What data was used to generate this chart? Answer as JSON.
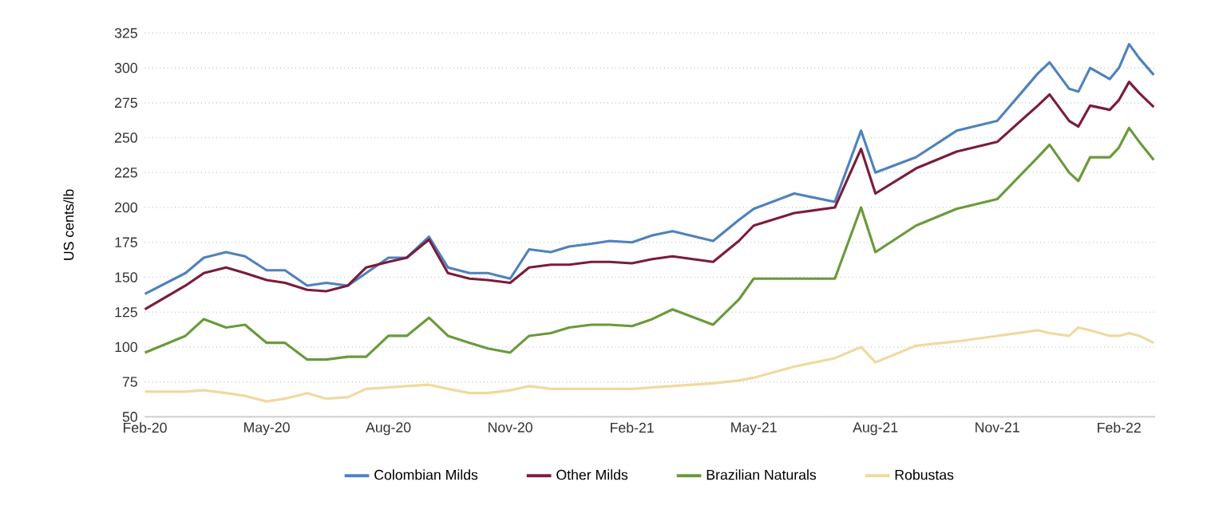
{
  "chart_data": {
    "type": "line",
    "ylabel": "US cents/lb",
    "x": [
      "2020-02-01",
      "2020-03-01",
      "2020-03-15",
      "2020-04-01",
      "2020-04-15",
      "2020-05-01",
      "2020-05-15",
      "2020-06-01",
      "2020-06-15",
      "2020-07-01",
      "2020-07-15",
      "2020-08-01",
      "2020-08-15",
      "2020-09-01",
      "2020-09-15",
      "2020-10-01",
      "2020-10-15",
      "2020-11-01",
      "2020-11-15",
      "2020-12-01",
      "2020-12-15",
      "2021-01-01",
      "2021-01-15",
      "2021-02-01",
      "2021-02-15",
      "2021-03-01",
      "2021-04-01",
      "2021-04-20",
      "2021-05-01",
      "2021-06-01",
      "2021-07-01",
      "2021-07-21",
      "2021-08-01",
      "2021-09-01",
      "2021-10-01",
      "2021-11-01",
      "2021-12-01",
      "2021-12-10",
      "2021-12-25",
      "2022-01-01",
      "2022-01-10",
      "2022-01-25",
      "2022-02-01",
      "2022-02-08",
      "2022-02-15",
      "2022-02-25"
    ],
    "series": [
      {
        "name": "Colombian Milds",
        "color": "#4f81bd",
        "values": [
          138,
          153,
          164,
          168,
          165,
          155,
          155,
          144,
          146,
          144,
          153,
          164,
          164,
          179,
          157,
          153,
          153,
          149,
          170,
          168,
          172,
          174,
          176,
          175,
          180,
          183,
          176,
          191,
          199,
          210,
          204,
          255,
          225,
          236,
          255,
          262,
          296,
          304,
          285,
          283,
          300,
          292,
          300,
          317,
          307,
          295
        ]
      },
      {
        "name": "Other Milds",
        "color": "#7b1c3a",
        "values": [
          127,
          144,
          153,
          157,
          153,
          148,
          146,
          141,
          140,
          144,
          157,
          161,
          164,
          177,
          153,
          149,
          148,
          146,
          157,
          159,
          159,
          161,
          161,
          160,
          163,
          165,
          161,
          176,
          187,
          196,
          200,
          242,
          210,
          228,
          240,
          247,
          273,
          281,
          262,
          258,
          273,
          270,
          277,
          290,
          282,
          272
        ]
      },
      {
        "name": "Brazilian Naturals",
        "color": "#6a9a3a",
        "values": [
          96,
          108,
          120,
          114,
          116,
          103,
          103,
          91,
          91,
          93,
          93,
          108,
          108,
          121,
          108,
          103,
          99,
          96,
          108,
          110,
          114,
          116,
          116,
          115,
          120,
          127,
          116,
          134,
          149,
          149,
          149,
          200,
          168,
          187,
          199,
          206,
          236,
          245,
          225,
          219,
          236,
          236,
          243,
          257,
          247,
          234
        ]
      },
      {
        "name": "Robustas",
        "color": "#f0d9a0",
        "values": [
          68,
          68,
          69,
          67,
          65,
          61,
          63,
          67,
          63,
          64,
          70,
          71,
          72,
          73,
          70,
          67,
          67,
          69,
          72,
          70,
          70,
          70,
          70,
          70,
          71,
          72,
          74,
          76,
          78,
          86,
          92,
          100,
          89,
          101,
          104,
          108,
          112,
          110,
          108,
          114,
          112,
          108,
          108,
          110,
          108,
          103
        ]
      }
    ],
    "xlim": [
      "2020-02-01",
      "2022-02-26"
    ],
    "xticks": [
      {
        "value": "2020-02",
        "label": "Feb-20"
      },
      {
        "value": "2020-05",
        "label": "May-20"
      },
      {
        "value": "2020-08",
        "label": "Aug-20"
      },
      {
        "value": "2020-11",
        "label": "Nov-20"
      },
      {
        "value": "2021-02",
        "label": "Feb-21"
      },
      {
        "value": "2021-05",
        "label": "May-21"
      },
      {
        "value": "2021-08",
        "label": "Aug-21"
      },
      {
        "value": "2021-11",
        "label": "Nov-21"
      },
      {
        "value": "2022-02",
        "label": "Feb-22"
      }
    ],
    "ylim": [
      50,
      325
    ],
    "yticks": [
      50,
      75,
      100,
      125,
      150,
      175,
      200,
      225,
      250,
      275,
      300,
      325
    ],
    "grid": "y",
    "legend": "bottom",
    "marker": "none",
    "line_style": "solid"
  }
}
